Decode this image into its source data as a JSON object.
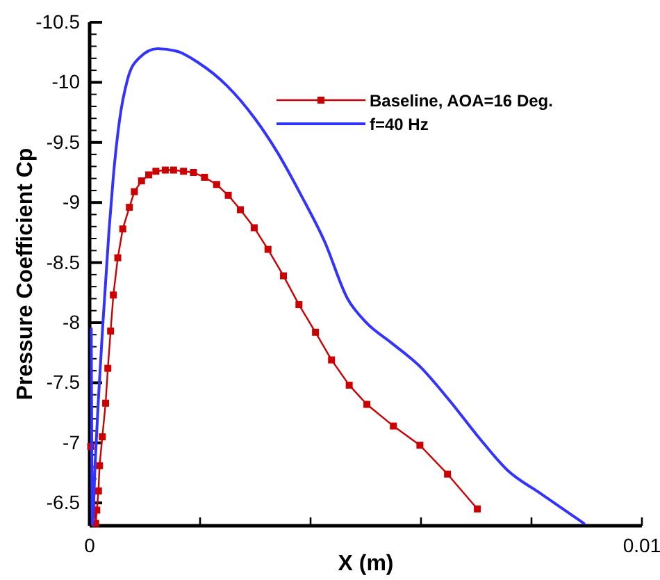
{
  "chart_data": {
    "type": "line",
    "xlabel": "X (m)",
    "ylabel": "Pressure Coefficient  Cp",
    "xlim": [
      0,
      0.01
    ],
    "ylim": [
      -6.31,
      -10.5
    ],
    "xticks": [
      0,
      {
        "value": 0.002,
        "label": null
      },
      {
        "value": 0.004,
        "label": null
      },
      {
        "value": 0.006,
        "label": null
      },
      {
        "value": 0.008,
        "label": null
      },
      0.01
    ],
    "yticks": [
      -6.5,
      -7,
      -7.5,
      -8,
      -8.5,
      -9,
      -9.5,
      -10,
      -10.5,
      {
        "value": -6.4,
        "label": null
      },
      {
        "value": -6.6,
        "label": null
      },
      {
        "value": -6.7,
        "label": null
      },
      {
        "value": -6.8,
        "label": null
      },
      {
        "value": -6.9,
        "label": null
      },
      {
        "value": -7.1,
        "label": null
      },
      {
        "value": -7.2,
        "label": null
      },
      {
        "value": -7.3,
        "label": null
      },
      {
        "value": -7.4,
        "label": null
      },
      {
        "value": -7.6,
        "label": null
      },
      {
        "value": -7.7,
        "label": null
      },
      {
        "value": -7.8,
        "label": null
      },
      {
        "value": -7.9,
        "label": null
      },
      {
        "value": -8.1,
        "label": null
      },
      {
        "value": -8.2,
        "label": null
      },
      {
        "value": -8.3,
        "label": null
      },
      {
        "value": -8.4,
        "label": null
      },
      {
        "value": -8.6,
        "label": null
      },
      {
        "value": -8.7,
        "label": null
      },
      {
        "value": -8.8,
        "label": null
      },
      {
        "value": -8.9,
        "label": null
      },
      {
        "value": -9.1,
        "label": null
      },
      {
        "value": -9.2,
        "label": null
      },
      {
        "value": -9.3,
        "label": null
      },
      {
        "value": -9.4,
        "label": null
      },
      {
        "value": -9.6,
        "label": null
      },
      {
        "value": -9.7,
        "label": null
      },
      {
        "value": -9.8,
        "label": null
      },
      {
        "value": -9.9,
        "label": null
      },
      {
        "value": -10.1,
        "label": null
      },
      {
        "value": -10.2,
        "label": null
      },
      {
        "value": -10.3,
        "label": null
      },
      {
        "value": -10.4,
        "label": null
      }
    ],
    "grid": false,
    "legend": "top right",
    "line_style": "solid",
    "series": [
      {
        "name": "Baseline, AOA=16 Deg.",
        "color": "#cc0000",
        "marker": "square",
        "x": [
          2e-05,
          0.00011,
          0.00013,
          0.00016,
          0.00018,
          0.00023,
          0.00029,
          0.00033,
          0.00038,
          0.00043,
          0.00051,
          0.0006,
          0.00072,
          0.00081,
          0.00094,
          0.00107,
          0.0012,
          0.00137,
          0.00152,
          0.0017,
          0.00188,
          0.00208,
          0.0023,
          0.00251,
          0.00273,
          0.00298,
          0.00323,
          0.00351,
          0.00379,
          0.00409,
          0.00438,
          0.0047,
          0.00502,
          0.0055,
          0.00598,
          0.00648,
          0.00702
        ],
        "values": [
          -6.97,
          -6.33,
          -6.44,
          -6.6,
          -6.81,
          -7.05,
          -7.33,
          -7.62,
          -7.93,
          -8.23,
          -8.54,
          -8.78,
          -8.96,
          -9.09,
          -9.18,
          -9.23,
          -9.26,
          -9.27,
          -9.27,
          -9.26,
          -9.25,
          -9.21,
          -9.15,
          -9.06,
          -8.94,
          -8.79,
          -8.61,
          -8.39,
          -8.15,
          -7.92,
          -7.69,
          -7.48,
          -7.32,
          -7.14,
          -6.98,
          -6.74,
          -6.45
        ]
      },
      {
        "name": "f=40 Hz",
        "color": "#3333ff",
        "marker": "none",
        "x": [
          3e-05,
          5e-05,
          0.0001,
          0.00016,
          0.00024,
          0.00035,
          0.00043,
          0.00054,
          0.00069,
          0.00089,
          0.00123,
          0.00157,
          0.00198,
          0.00249,
          0.00299,
          0.00341,
          0.00383,
          0.00425,
          0.00467,
          0.00501,
          0.00547,
          0.00597,
          0.00652,
          0.00702,
          0.00757,
          0.00816,
          0.00895
        ],
        "values": [
          -7.95,
          -6.32,
          -6.83,
          -7.37,
          -7.99,
          -8.76,
          -9.22,
          -9.68,
          -10.03,
          -10.2,
          -10.28,
          -10.26,
          -10.16,
          -9.97,
          -9.7,
          -9.41,
          -9.06,
          -8.68,
          -8.2,
          -8.0,
          -7.83,
          -7.64,
          -7.35,
          -7.06,
          -6.77,
          -6.58,
          -6.33
        ]
      }
    ]
  }
}
